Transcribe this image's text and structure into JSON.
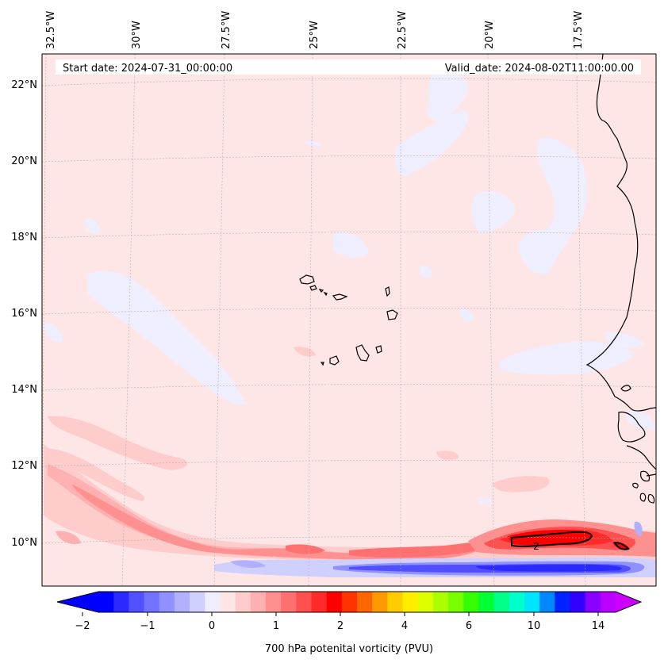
{
  "map": {
    "start_date": "Start date: 2024-07-31_00:00:00",
    "valid_date": "Valid_date: 2024-08-02T11:00:00.00",
    "lon_labels": [
      "32.5°W",
      "30°W",
      "27.5°W",
      "25°W",
      "22.5°W",
      "20°W",
      "17.5°W"
    ],
    "lat_labels": [
      "22°N",
      "20°N",
      "18°N",
      "16°N",
      "14°N",
      "12°N",
      "10°N"
    ],
    "contour_label": "2",
    "colors": {
      "background_field": "#ffe6e6",
      "land_outline": "#000000",
      "grid": "#b0b0b0"
    }
  },
  "colorbar": {
    "label": "700 hPa potenital vorticity (PVU)",
    "tick_labels": [
      "−2",
      "−1",
      "0",
      "1",
      "2",
      "4",
      "6",
      "10",
      "14"
    ],
    "colors": [
      "#0000ff",
      "#2a2aff",
      "#5050ff",
      "#7272ff",
      "#9090ff",
      "#b0b0ff",
      "#d0d0ff",
      "#eeeeff",
      "#ffe6e6",
      "#ffcccc",
      "#ffb0b0",
      "#ff9090",
      "#ff7070",
      "#ff5050",
      "#ff2a2a",
      "#ff0000",
      "#ff3300",
      "#ff6600",
      "#ff9900",
      "#ffcc00",
      "#ffee00",
      "#ddff00",
      "#aaff00",
      "#77ff00",
      "#33ff00",
      "#00ff33",
      "#00ff88",
      "#00ffcc",
      "#00e5ff",
      "#0088ff",
      "#0022ff",
      "#3300ff",
      "#8800ff",
      "#bb00ff"
    ],
    "under_color": "#0000ff",
    "over_color": "#cc00ff"
  }
}
